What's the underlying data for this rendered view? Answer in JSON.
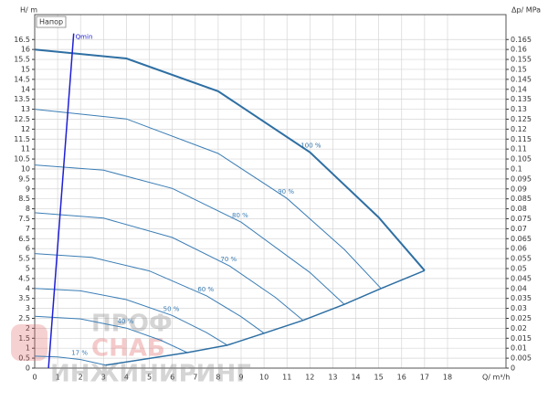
{
  "chart_data": {
    "type": "line",
    "y_label": "H/ m",
    "y2_label": "Δp/ MPa",
    "x_label": "Q/ m³/h",
    "panel_label": "Напор",
    "xlim": [
      0,
      20.55
    ],
    "ylim": [
      0,
      17.75
    ],
    "y2lim": [
      0,
      0.1775
    ],
    "grid": true,
    "xticks": [
      0,
      1,
      2,
      3,
      4,
      5,
      6,
      7,
      8,
      9,
      10,
      11,
      12,
      13,
      14,
      15,
      16,
      17,
      18
    ],
    "yticks": [
      0,
      0.5,
      1,
      1.5,
      2,
      2.5,
      3,
      3.5,
      4,
      4.5,
      5,
      5.5,
      6,
      6.5,
      7,
      7.5,
      8,
      8.5,
      9,
      9.5,
      10,
      10.5,
      11,
      11.5,
      12,
      12.5,
      13,
      13.5,
      14,
      14.5,
      15,
      15.5,
      16,
      16.5
    ],
    "y2ticks": [
      0,
      0.005,
      0.01,
      0.015,
      0.02,
      0.025,
      0.03,
      0.035,
      0.04,
      0.045,
      0.05,
      0.055,
      0.06,
      0.065,
      0.07,
      0.075,
      0.08,
      0.085,
      0.09,
      0.095,
      0.1,
      0.105,
      0.11,
      0.115,
      0.12,
      0.125,
      0.13,
      0.135,
      0.14,
      0.145,
      0.15,
      0.155,
      0.16,
      0.165
    ],
    "series": [
      {
        "name": "100 %",
        "color": "#2e6fa3",
        "width": 2,
        "x": [
          0,
          4,
          8,
          12,
          15,
          17
        ],
        "values": [
          16,
          15.55,
          13.9,
          10.84,
          7.57,
          4.9
        ]
      },
      {
        "name": "90 %",
        "color": "#3a7db5",
        "width": 1,
        "x": [
          0,
          4,
          8,
          11,
          13.5,
          15.1
        ],
        "values": [
          13,
          12.51,
          10.78,
          8.52,
          5.96,
          4.0
        ]
      },
      {
        "name": "80 %",
        "color": "#3a7db5",
        "width": 1,
        "x": [
          0,
          3,
          6,
          9,
          12,
          13.5
        ],
        "values": [
          10.2,
          9.94,
          9.02,
          7.33,
          4.8,
          3.2
        ]
      },
      {
        "name": "70 %",
        "color": "#3a7db5",
        "width": 1,
        "x": [
          0,
          3,
          6,
          8.5,
          10.5,
          11.7
        ],
        "values": [
          7.8,
          7.53,
          6.56,
          5.13,
          3.55,
          2.4
        ]
      },
      {
        "name": "60 %",
        "color": "#3a7db5",
        "width": 1,
        "x": [
          0,
          2.5,
          5,
          7.5,
          9,
          10
        ],
        "values": [
          5.75,
          5.56,
          4.88,
          3.63,
          2.58,
          1.75
        ]
      },
      {
        "name": "50 %",
        "color": "#3a7db5",
        "width": 1,
        "x": [
          0,
          2,
          4,
          6,
          7.5,
          8.4
        ],
        "values": [
          4.0,
          3.88,
          3.44,
          2.64,
          1.78,
          1.15
        ]
      },
      {
        "name": "40 %",
        "color": "#3a7db5",
        "width": 1,
        "x": [
          0,
          2,
          4,
          5.5,
          6.65
        ],
        "values": [
          2.6,
          2.47,
          2.01,
          1.4,
          0.78
        ]
      },
      {
        "name": "17 %",
        "color": "#3a7db5",
        "width": 1,
        "x": [
          0,
          1,
          2,
          3.1
        ],
        "values": [
          0.6,
          0.56,
          0.43,
          0.15
        ]
      },
      {
        "name": "Qmin",
        "color": "#1f1fd6",
        "width": 1.5,
        "x": [
          0.6,
          1.7
        ],
        "values": [
          0,
          16.8
        ]
      }
    ],
    "limit_curve": {
      "color": "#2e6fa3",
      "x": [
        3.1,
        6.65,
        8.4,
        10,
        11.7,
        13.5,
        15.1,
        17
      ],
      "values": [
        0.15,
        0.78,
        1.15,
        1.75,
        2.4,
        3.2,
        4.0,
        4.9
      ]
    },
    "watermark": [
      "ПРОФ",
      "СНАБ",
      "ИНЖИНИРИНГ"
    ]
  }
}
